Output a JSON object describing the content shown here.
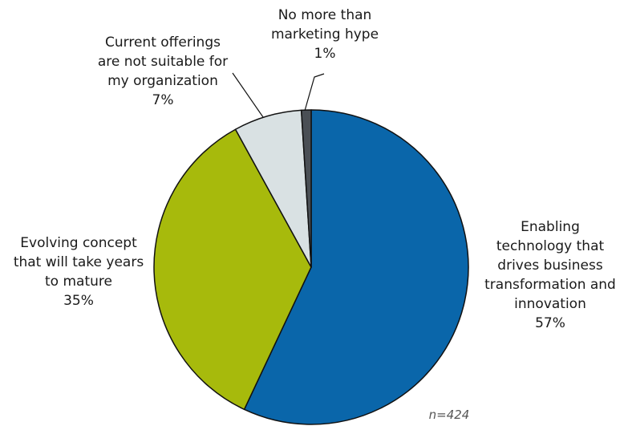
{
  "chart_data": {
    "type": "pie",
    "slices": [
      {
        "name": "Enabling technology that drives business transformation and innovation",
        "lines": [
          "Enabling",
          "technology that",
          "drives business",
          "transformation and",
          "innovation"
        ],
        "pct_label": "57%",
        "value": 57,
        "color": "#0a66aa"
      },
      {
        "name": "Evolving concept that will take years to mature",
        "lines": [
          "Evolving concept",
          "that will take years",
          "to mature"
        ],
        "pct_label": "35%",
        "value": 35,
        "color": "#a7ba0c"
      },
      {
        "name": "Current offerings are not suitable for my organization",
        "lines": [
          "Current offerings",
          "are not suitable for",
          "my organization"
        ],
        "pct_label": "7%",
        "value": 7,
        "color": "#d9e1e3"
      },
      {
        "name": "No more than marketing hype",
        "lines": [
          "No more than",
          "marketing hype"
        ],
        "pct_label": "1%",
        "value": 1,
        "color": "#4a4f55"
      }
    ],
    "note": "n=424"
  }
}
